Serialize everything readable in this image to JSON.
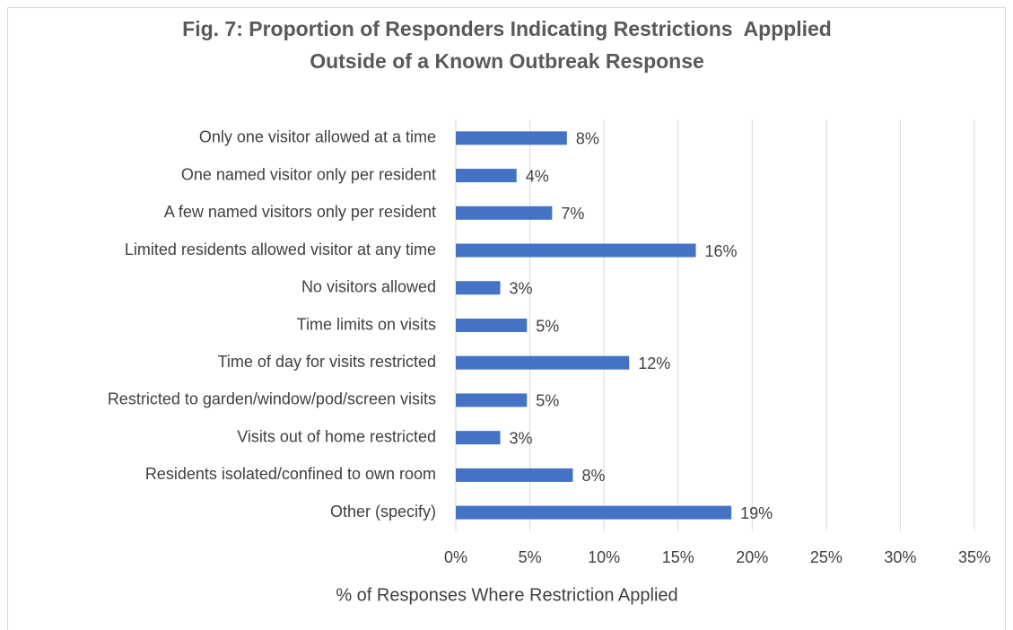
{
  "chart_data": {
    "type": "hbar",
    "title": [
      "Fig. 7: Proportion of Responders Indicating Restrictions  Appplied",
      "Outside of a Known Outbreak Response"
    ],
    "x_label": "% of Responses Where Restriction Applied",
    "categories": [
      "Only one visitor allowed at a time",
      "One named visitor only per resident",
      "A few named visitors only per resident",
      "Limited residents allowed visitor at any time",
      "No visitors allowed",
      "Time limits on visits",
      "Time of day for visits restricted",
      "Restricted to garden/window/pod/screen visits",
      "Visits out of home restricted",
      "Residents isolated/confined to own room",
      "Other (specify)"
    ],
    "values": [
      7.5,
      4.1,
      6.5,
      16.2,
      3.0,
      4.8,
      11.7,
      4.8,
      3.0,
      7.9,
      18.6
    ],
    "value_labels": [
      "8%",
      "4%",
      "7%",
      "16%",
      "3%",
      "5%",
      "12%",
      "5%",
      "3%",
      "8%",
      "19%"
    ],
    "color": "#4472c4",
    "xlim": [
      0,
      35
    ],
    "xticks": [
      {
        "value": 0,
        "label": "0%"
      },
      {
        "value": 5,
        "label": "5%"
      },
      {
        "value": 10,
        "label": "10%"
      },
      {
        "value": 15,
        "label": "15%"
      },
      {
        "value": 20,
        "label": "20%"
      },
      {
        "value": 25,
        "label": "25%"
      },
      {
        "value": 30,
        "label": "30%"
      },
      {
        "value": 35,
        "label": "35%"
      }
    ],
    "grid": true
  }
}
